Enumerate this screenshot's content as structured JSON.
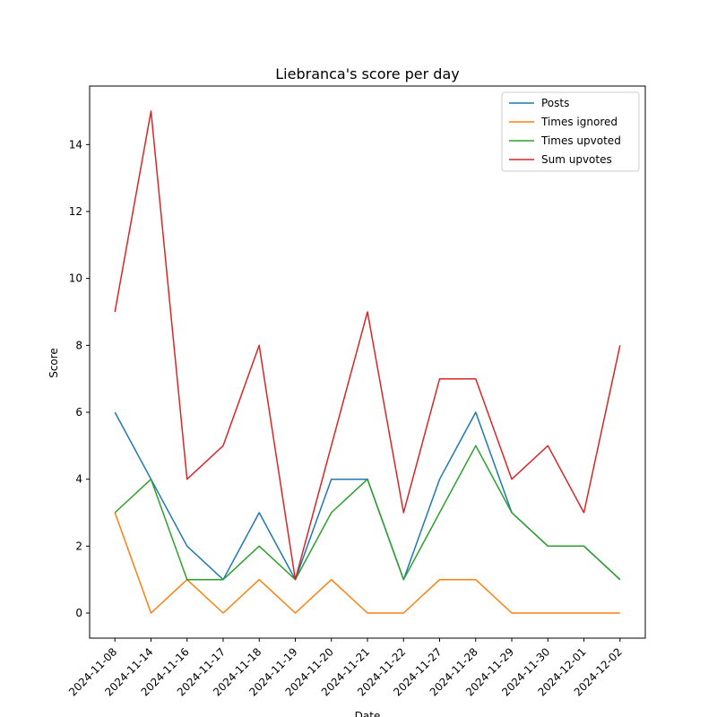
{
  "chart_data": {
    "type": "line",
    "title": "Liebranca's score per day",
    "xlabel": "Date",
    "ylabel": "Score",
    "categories": [
      "2024-11-08",
      "2024-11-14",
      "2024-11-16",
      "2024-11-17",
      "2024-11-18",
      "2024-11-19",
      "2024-11-20",
      "2024-11-21",
      "2024-11-22",
      "2024-11-27",
      "2024-11-28",
      "2024-11-29",
      "2024-11-30",
      "2024-12-01",
      "2024-12-02"
    ],
    "yticks": [
      0,
      2,
      4,
      6,
      8,
      10,
      12,
      14
    ],
    "ylim": [
      -0.75,
      15.75
    ],
    "grid": false,
    "legend_position": "top-right",
    "series": [
      {
        "name": "Posts",
        "color": "#1f77b4",
        "values": [
          6,
          4,
          2,
          1,
          3,
          1,
          4,
          4,
          1,
          4,
          6,
          3,
          2,
          2,
          1
        ]
      },
      {
        "name": "Times ignored",
        "color": "#ff7f0e",
        "values": [
          3,
          0,
          1,
          0,
          1,
          0,
          1,
          0,
          0,
          1,
          1,
          0,
          0,
          0,
          0
        ]
      },
      {
        "name": "Times upvoted",
        "color": "#2ca02c",
        "values": [
          3,
          4,
          1,
          1,
          2,
          1,
          3,
          4,
          1,
          3,
          5,
          3,
          2,
          2,
          1
        ]
      },
      {
        "name": "Sum upvotes",
        "color": "#d62728",
        "values": [
          9,
          15,
          4,
          5,
          8,
          1,
          5,
          9,
          3,
          7,
          7,
          4,
          5,
          3,
          8
        ]
      }
    ]
  }
}
